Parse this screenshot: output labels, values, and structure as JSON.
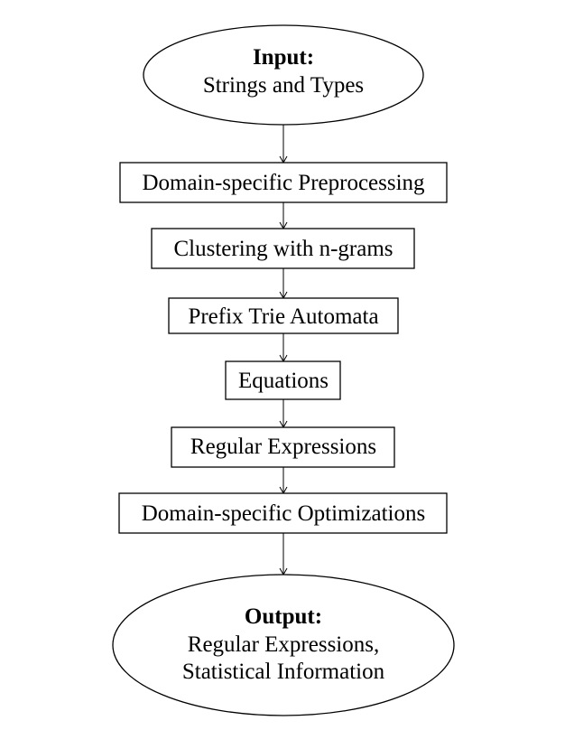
{
  "diagram": {
    "input": {
      "heading": "Input:",
      "lines": [
        "Strings and Types"
      ]
    },
    "steps": [
      "Domain-specific Preprocessing",
      "Clustering with n-grams",
      "Prefix Trie Automata",
      "Equations",
      "Regular Expressions",
      "Domain-specific Optimizations"
    ],
    "output": {
      "heading": "Output:",
      "lines": [
        "Regular Expressions,",
        "Statistical Information"
      ]
    }
  }
}
